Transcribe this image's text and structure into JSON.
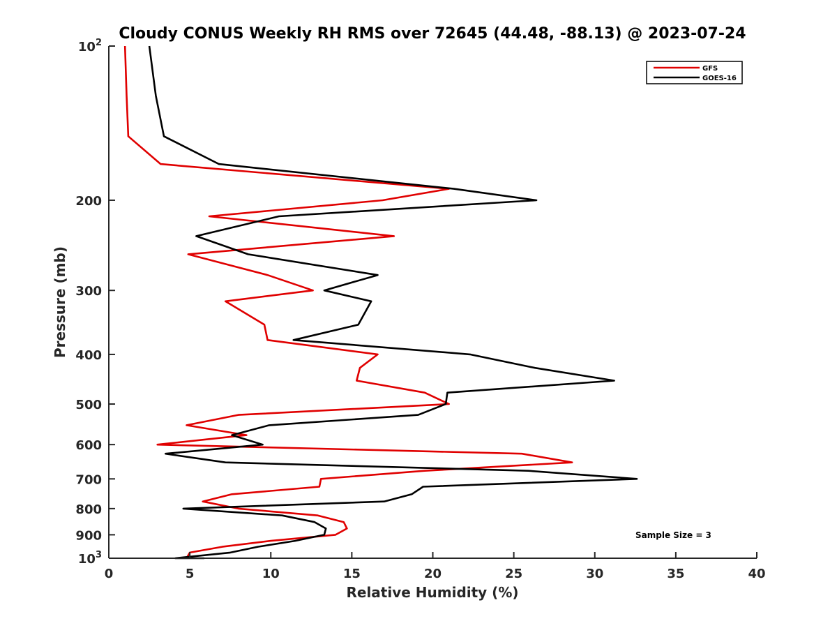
{
  "chart_data": {
    "type": "line",
    "title": "Cloudy CONUS Weekly RH RMS over 72645 (44.48, -88.13) @ 2023-07-24",
    "xlabel": "Relative Humidity (%)",
    "ylabel": "Pressure (mb)",
    "xlim": [
      0,
      40
    ],
    "ylim": [
      100,
      1000
    ],
    "y_scale": "log",
    "y_reversed": true,
    "x_ticks": [
      "0",
      "5",
      "10",
      "15",
      "20",
      "25",
      "30",
      "35",
      "40"
    ],
    "x_tick_values": [
      0,
      5,
      10,
      15,
      20,
      25,
      30,
      35,
      40
    ],
    "y_ticks": [
      {
        "value": 100,
        "base": "10",
        "exp": "2"
      },
      {
        "value": 200,
        "label": "200"
      },
      {
        "value": 300,
        "label": "300"
      },
      {
        "value": 400,
        "label": "400"
      },
      {
        "value": 500,
        "label": "500"
      },
      {
        "value": 600,
        "label": "600"
      },
      {
        "value": 700,
        "label": "700"
      },
      {
        "value": 800,
        "label": "800"
      },
      {
        "value": 900,
        "label": "900"
      },
      {
        "value": 1000,
        "base": "10",
        "exp": "3"
      }
    ],
    "legend_position": "top-right",
    "annotation": "Sample Size = 3",
    "series": [
      {
        "name": "GFS",
        "color": "#e00000",
        "points": [
          [
            1.0,
            100
          ],
          [
            1.1,
            125
          ],
          [
            1.2,
            150
          ],
          [
            3.2,
            170
          ],
          [
            21.0,
            190
          ],
          [
            16.9,
            200
          ],
          [
            6.2,
            215
          ],
          [
            17.6,
            235
          ],
          [
            4.9,
            255
          ],
          [
            9.8,
            280
          ],
          [
            12.6,
            300
          ],
          [
            7.2,
            315
          ],
          [
            9.6,
            350
          ],
          [
            9.8,
            375
          ],
          [
            16.6,
            400
          ],
          [
            15.5,
            425
          ],
          [
            15.3,
            450
          ],
          [
            19.5,
            475
          ],
          [
            21.0,
            500
          ],
          [
            8.0,
            525
          ],
          [
            4.8,
            550
          ],
          [
            8.5,
            575
          ],
          [
            3.0,
            600
          ],
          [
            25.5,
            625
          ],
          [
            28.6,
            650
          ],
          [
            19.5,
            675
          ],
          [
            13.1,
            700
          ],
          [
            13.0,
            725
          ],
          [
            7.6,
            750
          ],
          [
            5.8,
            775
          ],
          [
            8.0,
            800
          ],
          [
            12.9,
            825
          ],
          [
            14.5,
            850
          ],
          [
            14.7,
            875
          ],
          [
            14.0,
            900
          ],
          [
            10.0,
            925
          ],
          [
            7.0,
            950
          ],
          [
            5.0,
            975
          ],
          [
            4.8,
            1000
          ]
        ]
      },
      {
        "name": "GOES-16",
        "color": "#000000",
        "points": [
          [
            2.5,
            100
          ],
          [
            2.9,
            125
          ],
          [
            3.4,
            150
          ],
          [
            6.8,
            170
          ],
          [
            21.3,
            190
          ],
          [
            26.4,
            200
          ],
          [
            10.5,
            215
          ],
          [
            5.4,
            235
          ],
          [
            8.6,
            255
          ],
          [
            16.6,
            280
          ],
          [
            13.3,
            300
          ],
          [
            16.2,
            315
          ],
          [
            15.4,
            350
          ],
          [
            11.4,
            375
          ],
          [
            22.3,
            400
          ],
          [
            26.3,
            425
          ],
          [
            31.2,
            450
          ],
          [
            20.9,
            475
          ],
          [
            20.8,
            500
          ],
          [
            19.1,
            525
          ],
          [
            9.9,
            550
          ],
          [
            7.6,
            575
          ],
          [
            9.5,
            600
          ],
          [
            3.5,
            625
          ],
          [
            7.2,
            650
          ],
          [
            25.9,
            675
          ],
          [
            32.6,
            700
          ],
          [
            19.4,
            725
          ],
          [
            18.7,
            750
          ],
          [
            17.0,
            775
          ],
          [
            4.6,
            800
          ],
          [
            10.7,
            825
          ],
          [
            12.7,
            850
          ],
          [
            13.4,
            875
          ],
          [
            13.3,
            900
          ],
          [
            11.5,
            925
          ],
          [
            9.2,
            950
          ],
          [
            7.5,
            975
          ],
          [
            4.1,
            1000
          ],
          [
            5.9,
            1000
          ]
        ]
      }
    ]
  }
}
